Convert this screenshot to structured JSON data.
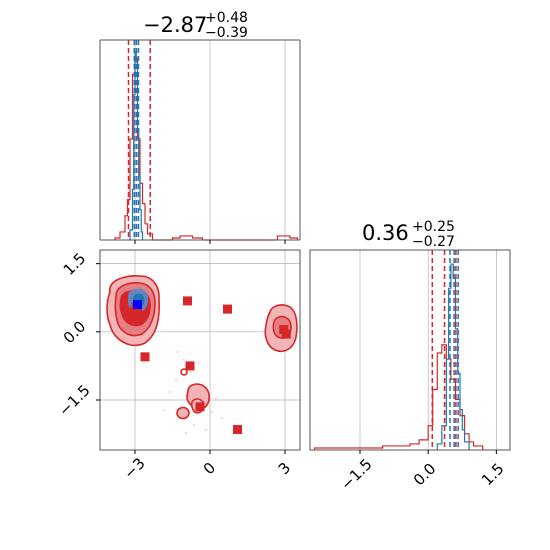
{
  "colors": {
    "red": "#d62728",
    "blue": "#1f77b4",
    "blue_marker": "#0000ff",
    "red_fill_light": "#f2b5b7",
    "red_fill_mid": "#e57f83",
    "grid": "#b0b0b0"
  },
  "chart_data": [
    {
      "panel": "marginal-x",
      "type": "histogram",
      "title": {
        "value": "−2.87",
        "sup": "+0.48",
        "sub": "−0.39"
      },
      "xlim": [
        -4.4,
        3.6
      ],
      "grid": true,
      "xticks": [
        -3,
        0,
        3
      ],
      "series": [
        {
          "color": "#d62728",
          "style": "step",
          "bins": [
            [
              -3.8,
              -3.6,
              0.01
            ],
            [
              -3.6,
              -3.4,
              0.04
            ],
            [
              -3.4,
              -3.3,
              0.12
            ],
            [
              -3.3,
              -3.2,
              0.2
            ],
            [
              -3.2,
              -3.1,
              0.5
            ],
            [
              -3.1,
              -3.0,
              0.82
            ],
            [
              -3.0,
              -2.9,
              0.9
            ],
            [
              -2.9,
              -2.8,
              0.5
            ],
            [
              -2.8,
              -2.7,
              0.28
            ],
            [
              -2.7,
              -2.6,
              0.18
            ],
            [
              -2.6,
              -2.5,
              0.08
            ],
            [
              -2.5,
              -2.3,
              0.03
            ],
            [
              -2.3,
              -1.5,
              0.0
            ],
            [
              -1.5,
              -1.2,
              0.01
            ],
            [
              -1.2,
              -0.7,
              0.02
            ],
            [
              -0.7,
              -0.3,
              0.01
            ],
            [
              -0.3,
              2.7,
              0.0
            ],
            [
              2.7,
              3.2,
              0.02
            ],
            [
              3.2,
              3.5,
              0.01
            ]
          ]
        },
        {
          "color": "#1f77b4",
          "style": "step",
          "bins": [
            [
              -3.2,
              -3.1,
              0.05
            ],
            [
              -3.1,
              -3.05,
              0.25
            ],
            [
              -3.05,
              -3.0,
              0.72
            ],
            [
              -3.0,
              -2.95,
              0.93
            ],
            [
              -2.95,
              -2.9,
              0.88
            ],
            [
              -2.9,
              -2.85,
              0.55
            ],
            [
              -2.85,
              -2.8,
              0.32
            ],
            [
              -2.8,
              -2.75,
              0.15
            ],
            [
              -2.75,
              -2.7,
              0.04
            ]
          ]
        }
      ],
      "vlines": [
        {
          "x": -3.26,
          "color": "#d62728"
        },
        {
          "x": -2.87,
          "color": "#d62728"
        },
        {
          "x": -2.39,
          "color": "#d62728"
        },
        {
          "x": -3.03,
          "color": "#1f77b4"
        },
        {
          "x": -2.95,
          "color": "#1f77b4"
        },
        {
          "x": -2.86,
          "color": "#1f77b4"
        }
      ]
    },
    {
      "panel": "joint",
      "type": "contour",
      "xlim": [
        -4.4,
        3.6
      ],
      "ylim": [
        -2.6,
        1.8
      ],
      "grid": true,
      "xticks": [
        -3,
        0,
        3
      ],
      "yticks": [
        1.5,
        0.0,
        -1.5
      ],
      "tick_labels_x": [
        "−3",
        "0",
        "3"
      ],
      "tick_labels_y": [
        "1.5",
        "0.0",
        "−1.5"
      ],
      "points": [
        {
          "x": -3.0,
          "y": 0.45,
          "color": "#d62728"
        },
        {
          "x": -2.95,
          "y": 0.55,
          "color": "#d62728"
        },
        {
          "x": -2.9,
          "y": 0.5,
          "color": "#d62728"
        },
        {
          "x": -2.6,
          "y": -0.55,
          "color": "#d62728"
        },
        {
          "x": -0.9,
          "y": 0.68,
          "color": "#d62728"
        },
        {
          "x": -0.8,
          "y": -0.75,
          "color": "#d62728"
        },
        {
          "x": 0.7,
          "y": 0.5,
          "color": "#d62728"
        },
        {
          "x": 2.95,
          "y": 0.05,
          "color": "#d62728"
        },
        {
          "x": 3.05,
          "y": -0.05,
          "color": "#d62728"
        },
        {
          "x": -0.4,
          "y": -1.65,
          "color": "#d62728"
        },
        {
          "x": 1.1,
          "y": -2.15,
          "color": "#d62728"
        },
        {
          "x": -2.9,
          "y": 0.6,
          "color": "#0000ff"
        }
      ]
    },
    {
      "panel": "marginal-y",
      "type": "histogram",
      "title": {
        "value": "0.36",
        "sup": "+0.25",
        "sub": "−0.27"
      },
      "xlim": [
        -2.6,
        1.8
      ],
      "grid": true,
      "xticks": [
        -1.5,
        0.0,
        1.5
      ],
      "tick_labels": [
        "−1.5",
        "0.0",
        "1.5"
      ],
      "series": [
        {
          "color": "#d62728",
          "style": "step",
          "bins": [
            [
              -2.5,
              -1.0,
              0.01
            ],
            [
              -1.0,
              -0.4,
              0.02
            ],
            [
              -0.4,
              -0.2,
              0.03
            ],
            [
              -0.2,
              0.0,
              0.05
            ],
            [
              0.0,
              0.1,
              0.12
            ],
            [
              0.1,
              0.2,
              0.3
            ],
            [
              0.2,
              0.3,
              0.48
            ],
            [
              0.3,
              0.4,
              0.52
            ],
            [
              0.4,
              0.5,
              0.45
            ],
            [
              0.5,
              0.6,
              0.35
            ],
            [
              0.6,
              0.7,
              0.25
            ],
            [
              0.7,
              0.8,
              0.17
            ],
            [
              0.8,
              0.9,
              0.08
            ],
            [
              0.9,
              1.0,
              0.04
            ],
            [
              1.0,
              1.2,
              0.02
            ]
          ]
        },
        {
          "color": "#1f77b4",
          "style": "step",
          "bins": [
            [
              0.2,
              0.3,
              0.03
            ],
            [
              0.3,
              0.4,
              0.12
            ],
            [
              0.4,
              0.45,
              0.45
            ],
            [
              0.45,
              0.5,
              0.8
            ],
            [
              0.5,
              0.55,
              0.92
            ],
            [
              0.55,
              0.6,
              0.85
            ],
            [
              0.6,
              0.65,
              0.6
            ],
            [
              0.65,
              0.7,
              0.38
            ],
            [
              0.7,
              0.75,
              0.2
            ],
            [
              0.75,
              0.8,
              0.1
            ],
            [
              0.8,
              0.9,
              0.04
            ]
          ]
        }
      ],
      "vlines": [
        {
          "x": 0.09,
          "color": "#d62728"
        },
        {
          "x": 0.36,
          "color": "#d62728"
        },
        {
          "x": 0.61,
          "color": "#d62728"
        },
        {
          "x": 0.48,
          "color": "#1f77b4"
        },
        {
          "x": 0.57,
          "color": "#1f77b4"
        },
        {
          "x": 0.66,
          "color": "#1f77b4"
        }
      ]
    }
  ]
}
